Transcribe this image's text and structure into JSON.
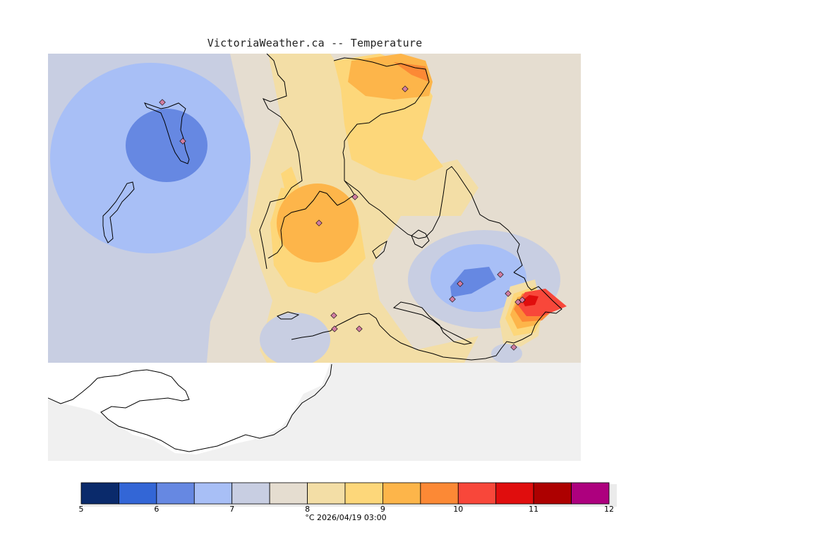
{
  "title": "VictoriaWeather.ca -- Temperature",
  "legend": {
    "unit_label": "°C",
    "timestamp": "2026/04/19 03:00",
    "min": 5,
    "max": 12,
    "step": 0.5,
    "tick_values": [
      "5",
      "6",
      "7",
      "8",
      "9",
      "10",
      "11",
      "12"
    ],
    "colors": [
      "#0a2a6b",
      "#3366d6",
      "#6688e2",
      "#a8bff6",
      "#c8cee2",
      "#e5ddd0",
      "#f3dea6",
      "#fdd77a",
      "#fdb54a",
      "#fc8935",
      "#f8473a",
      "#e00d0d",
      "#ad0000",
      "#ad007e"
    ]
  },
  "map": {
    "background_color": "#f0f0f0",
    "station_marker_color": "#d07ca0",
    "coast_color": "#000000"
  },
  "chart_data": {
    "type": "heatmap",
    "title": "VictoriaWeather.ca -- Temperature",
    "colorbar_range": [
      5,
      12
    ],
    "colorbar_units": "°C",
    "timestamp": "2026/04/19 03:00"
  }
}
